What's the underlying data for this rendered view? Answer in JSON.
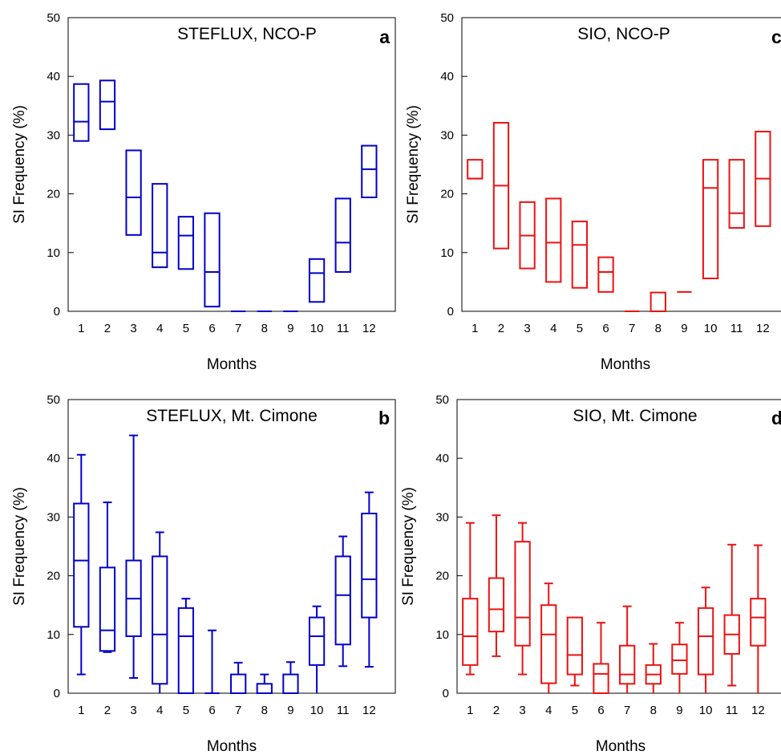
{
  "chart_data": [
    {
      "type": "box",
      "panel": "a",
      "title": "STEFLUX, NCO-P",
      "xlabel": "Months",
      "ylabel": "SI Frequency (%)",
      "ylim": [
        0,
        50
      ],
      "yticks": [
        0,
        10,
        20,
        30,
        40,
        50
      ],
      "categories": [
        "1",
        "2",
        "3",
        "4",
        "5",
        "6",
        "7",
        "8",
        "9",
        "10",
        "11",
        "12"
      ],
      "color": "#0000cc",
      "boxes": [
        {
          "q1": 29.0,
          "median": 32.3,
          "q3": 38.7
        },
        {
          "q1": 31.0,
          "median": 35.7,
          "q3": 39.3
        },
        {
          "q1": 13.0,
          "median": 19.4,
          "q3": 27.4
        },
        {
          "q1": 7.5,
          "median": 10.0,
          "q3": 21.7
        },
        {
          "q1": 7.2,
          "median": 12.9,
          "q3": 16.1
        },
        {
          "q1": 0.8,
          "median": 6.7,
          "q3": 16.7
        },
        {
          "q1": 0,
          "median": 0,
          "q3": 0
        },
        {
          "q1": 0,
          "median": 0,
          "q3": 0
        },
        {
          "q1": 0,
          "median": 0,
          "q3": 0
        },
        {
          "q1": 1.6,
          "median": 6.5,
          "q3": 8.9
        },
        {
          "q1": 6.7,
          "median": 11.7,
          "q3": 19.2
        },
        {
          "q1": 19.4,
          "median": 24.2,
          "q3": 28.2
        }
      ]
    },
    {
      "type": "box",
      "panel": "b",
      "title": "STEFLUX, Mt. Cimone",
      "xlabel": "Months",
      "ylabel": "SI Frequency (%)",
      "ylim": [
        0,
        50
      ],
      "yticks": [
        0,
        10,
        20,
        30,
        40,
        50
      ],
      "categories": [
        "1",
        "2",
        "3",
        "4",
        "5",
        "6",
        "7",
        "8",
        "9",
        "10",
        "11",
        "12"
      ],
      "color": "#0000cc",
      "boxes": [
        {
          "min": 3.2,
          "q1": 11.3,
          "median": 22.6,
          "q3": 32.3,
          "max": 40.6
        },
        {
          "min": 7.0,
          "q1": 7.2,
          "median": 10.7,
          "q3": 21.4,
          "max": 32.5
        },
        {
          "min": 2.6,
          "q1": 9.7,
          "median": 16.1,
          "q3": 22.6,
          "max": 43.9
        },
        {
          "min": 0,
          "q1": 1.6,
          "median": 10.0,
          "q3": 23.3,
          "max": 27.4
        },
        {
          "min": 0,
          "q1": 0,
          "median": 9.7,
          "q3": 14.5,
          "max": 16.1
        },
        {
          "min": 0,
          "q1": 0,
          "median": 0,
          "q3": 0,
          "max": 10.7
        },
        {
          "min": 0,
          "q1": 0,
          "median": 0,
          "q3": 3.2,
          "max": 5.2
        },
        {
          "min": 0,
          "q1": 0,
          "median": 0,
          "q3": 1.6,
          "max": 3.2
        },
        {
          "min": 0,
          "q1": 0,
          "median": 0,
          "q3": 3.2,
          "max": 5.3
        },
        {
          "min": 0,
          "q1": 4.8,
          "median": 9.7,
          "q3": 12.9,
          "max": 14.8
        },
        {
          "min": 4.6,
          "q1": 8.3,
          "median": 16.7,
          "q3": 23.3,
          "max": 26.7
        },
        {
          "min": 4.5,
          "q1": 12.9,
          "median": 19.4,
          "q3": 30.6,
          "max": 34.2
        }
      ]
    },
    {
      "type": "box",
      "panel": "c",
      "title": "SIO, NCO-P",
      "xlabel": "Months",
      "ylabel": "SI Frequency (%)",
      "ylim": [
        0,
        50
      ],
      "yticks": [
        0,
        10,
        20,
        30,
        40,
        50
      ],
      "categories": [
        "1",
        "2",
        "3",
        "4",
        "5",
        "6",
        "7",
        "8",
        "9",
        "10",
        "11",
        "12"
      ],
      "color": "#ee1111",
      "boxes": [
        {
          "q1": 22.6,
          "median": 22.6,
          "q3": 25.8
        },
        {
          "q1": 10.7,
          "median": 21.4,
          "q3": 32.1
        },
        {
          "q1": 7.3,
          "median": 12.9,
          "q3": 18.6
        },
        {
          "q1": 5.0,
          "median": 11.7,
          "q3": 19.2
        },
        {
          "q1": 4.0,
          "median": 11.3,
          "q3": 15.3
        },
        {
          "q1": 3.3,
          "median": 6.7,
          "q3": 9.2
        },
        {
          "q1": 0,
          "median": 0,
          "q3": 0
        },
        {
          "q1": 0,
          "median": 0,
          "q3": 3.2
        },
        {
          "q1": 3.3,
          "median": 3.3,
          "q3": 3.3
        },
        {
          "q1": 5.6,
          "median": 21.0,
          "q3": 25.8
        },
        {
          "q1": 14.2,
          "median": 16.7,
          "q3": 25.8
        },
        {
          "q1": 14.5,
          "median": 22.6,
          "q3": 30.6
        }
      ]
    },
    {
      "type": "box",
      "panel": "d",
      "title": "SIO, Mt. Cimone",
      "xlabel": "Months",
      "ylabel": "SI Frequency (%)",
      "ylim": [
        0,
        50
      ],
      "yticks": [
        0,
        10,
        20,
        30,
        40,
        50
      ],
      "categories": [
        "1",
        "2",
        "3",
        "4",
        "5",
        "6",
        "7",
        "8",
        "9",
        "10",
        "11",
        "12"
      ],
      "color": "#ee1111",
      "boxes": [
        {
          "min": 3.2,
          "q1": 4.8,
          "median": 9.7,
          "q3": 16.1,
          "max": 29.0
        },
        {
          "min": 6.3,
          "q1": 10.5,
          "median": 14.3,
          "q3": 19.6,
          "max": 30.3
        },
        {
          "min": 3.2,
          "q1": 8.1,
          "median": 12.9,
          "q3": 25.8,
          "max": 29.0
        },
        {
          "min": 0,
          "q1": 1.7,
          "median": 10.0,
          "q3": 15.0,
          "max": 18.7
        },
        {
          "min": 1.3,
          "q1": 3.2,
          "median": 6.5,
          "q3": 12.9,
          "max": 12.9
        },
        {
          "min": 0,
          "q1": 0,
          "median": 3.3,
          "q3": 5.0,
          "max": 12.0
        },
        {
          "min": 0,
          "q1": 1.6,
          "median": 3.2,
          "q3": 8.1,
          "max": 14.8
        },
        {
          "min": 0,
          "q1": 1.6,
          "median": 3.2,
          "q3": 4.8,
          "max": 8.4
        },
        {
          "min": 0,
          "q1": 3.3,
          "median": 5.6,
          "q3": 8.3,
          "max": 12.0
        },
        {
          "min": 0,
          "q1": 3.2,
          "median": 9.7,
          "q3": 14.5,
          "max": 18.0
        },
        {
          "min": 1.3,
          "q1": 6.7,
          "median": 10.0,
          "q3": 13.3,
          "max": 25.3
        },
        {
          "min": 0,
          "q1": 8.1,
          "median": 12.9,
          "q3": 16.1,
          "max": 25.2
        }
      ]
    }
  ]
}
